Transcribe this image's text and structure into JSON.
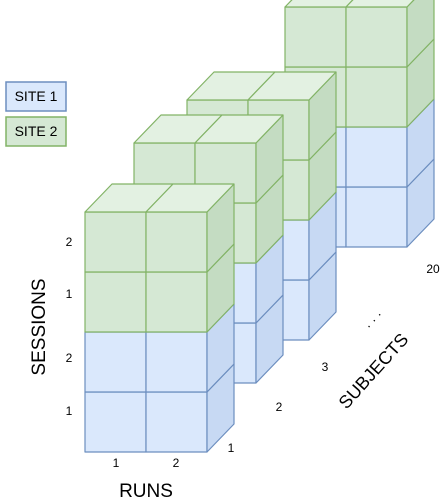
{
  "legend": [
    {
      "label": "SITE 1",
      "fill": "#dae8fc",
      "stroke": "#6c8ebf"
    },
    {
      "label": "SITE 2",
      "fill": "#d5e8d4",
      "stroke": "#82b366"
    }
  ],
  "colors": {
    "site1": {
      "front": "#dae8fc",
      "top": "#e6f0fd",
      "side": "#c7d9f3",
      "stroke": "#6c8ebf"
    },
    "site2": {
      "front": "#d5e8d4",
      "top": "#e3f1e2",
      "side": "#c4dcc2",
      "stroke": "#82b366"
    }
  },
  "axes": {
    "runs_title": "RUNS",
    "sessions_title": "SESSIONS",
    "subjects_title": "SUBJECTS",
    "run_ticks": [
      "1",
      "2"
    ],
    "session_ticks": [
      "1",
      "2",
      "1",
      "2"
    ],
    "subject_ticks": [
      "1",
      "2",
      "3",
      "20"
    ],
    "ellipsis": "· · ·"
  }
}
